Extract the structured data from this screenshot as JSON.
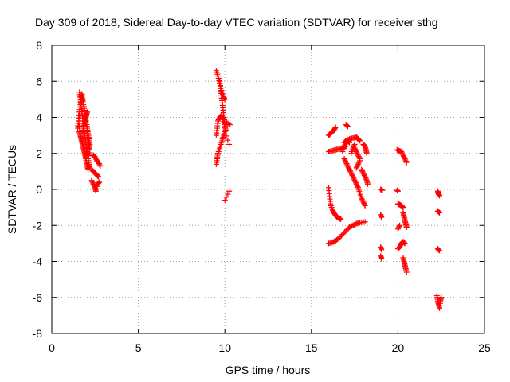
{
  "chart_data": {
    "type": "scatter",
    "title": "Day 309 of 2018, Sidereal Day-to-day VTEC variation (SDTVAR) for receiver sthg",
    "xlabel": "GPS time / hours",
    "ylabel": "SDTVAR / TECUs",
    "xlim": [
      0,
      25
    ],
    "ylim": [
      -8,
      8
    ],
    "xticks": [
      0,
      5,
      10,
      15,
      20,
      25
    ],
    "yticks": [
      -8,
      -6,
      -4,
      -2,
      0,
      2,
      4,
      6,
      8
    ],
    "grid": true,
    "marker": "plus",
    "color": "#ff0000",
    "segments": [
      [
        [
          1.55,
          4.1
        ],
        [
          1.6,
          3.2
        ],
        [
          1.65,
          3.0
        ],
        [
          1.7,
          2.8
        ],
        [
          1.75,
          2.6
        ],
        [
          1.8,
          2.4
        ],
        [
          1.85,
          2.2
        ],
        [
          1.9,
          2.0
        ],
        [
          1.95,
          1.8
        ],
        [
          2.0,
          1.5
        ],
        [
          2.05,
          1.3
        ],
        [
          2.1,
          1.1
        ]
      ],
      [
        [
          1.6,
          5.4
        ],
        [
          1.65,
          5.0
        ],
        [
          1.7,
          4.6
        ],
        [
          1.75,
          4.2
        ],
        [
          1.8,
          3.8
        ],
        [
          1.85,
          3.4
        ],
        [
          1.9,
          3.0
        ],
        [
          1.95,
          2.7
        ],
        [
          2.0,
          2.4
        ],
        [
          2.05,
          2.1
        ],
        [
          2.1,
          1.9
        ]
      ],
      [
        [
          1.7,
          5.3
        ],
        [
          1.75,
          5.1
        ],
        [
          1.8,
          4.9
        ],
        [
          1.85,
          4.6
        ],
        [
          1.9,
          4.3
        ],
        [
          1.95,
          4.0
        ],
        [
          2.0,
          3.7
        ],
        [
          2.05,
          3.4
        ],
        [
          2.1,
          3.1
        ],
        [
          2.15,
          2.8
        ],
        [
          2.2,
          2.5
        ]
      ],
      [
        [
          1.5,
          3.4
        ],
        [
          1.55,
          3.8
        ],
        [
          1.6,
          4.3
        ],
        [
          1.65,
          4.7
        ],
        [
          1.7,
          5.1
        ],
        [
          1.75,
          5.3
        ]
      ],
      [
        [
          1.8,
          3.2
        ],
        [
          1.85,
          3.5
        ],
        [
          1.9,
          3.7
        ],
        [
          1.95,
          3.9
        ],
        [
          2.0,
          4.1
        ],
        [
          2.05,
          4.3
        ]
      ],
      [
        [
          2.05,
          2.9
        ],
        [
          2.1,
          2.6
        ],
        [
          2.15,
          2.4
        ],
        [
          2.2,
          2.2
        ],
        [
          2.1,
          1.7
        ],
        [
          2.15,
          1.4
        ],
        [
          2.2,
          1.2
        ]
      ],
      [
        [
          2.4,
          1.9
        ],
        [
          2.5,
          1.8
        ],
        [
          2.6,
          1.6
        ],
        [
          2.7,
          1.5
        ],
        [
          2.8,
          1.3
        ]
      ],
      [
        [
          2.3,
          1.1
        ],
        [
          2.4,
          1.0
        ],
        [
          2.5,
          0.9
        ],
        [
          2.6,
          0.8
        ],
        [
          2.7,
          0.7
        ]
      ],
      [
        [
          2.3,
          0.5
        ],
        [
          2.4,
          0.3
        ],
        [
          2.5,
          0.1
        ],
        [
          2.55,
          -0.1
        ],
        [
          2.65,
          0.3
        ],
        [
          2.75,
          0.4
        ]
      ],
      [
        [
          9.5,
          6.6
        ],
        [
          9.6,
          6.3
        ],
        [
          9.7,
          5.9
        ],
        [
          9.8,
          5.5
        ],
        [
          9.9,
          5.2
        ],
        [
          10.0,
          5.0
        ]
      ],
      [
        [
          9.7,
          6.0
        ],
        [
          9.75,
          5.6
        ],
        [
          9.8,
          5.2
        ],
        [
          9.85,
          4.8
        ],
        [
          9.9,
          4.4
        ],
        [
          9.95,
          4.0
        ],
        [
          10.0,
          3.6
        ],
        [
          10.1,
          3.7
        ],
        [
          10.3,
          3.6
        ]
      ],
      [
        [
          9.5,
          3.0
        ],
        [
          9.55,
          3.4
        ],
        [
          9.6,
          3.8
        ],
        [
          9.7,
          4.0
        ],
        [
          9.8,
          4.1
        ],
        [
          9.9,
          3.9
        ],
        [
          10.0,
          3.5
        ],
        [
          10.05,
          3.3
        ]
      ],
      [
        [
          9.5,
          1.4
        ],
        [
          9.55,
          1.7
        ],
        [
          9.6,
          2.0
        ],
        [
          9.7,
          2.3
        ],
        [
          9.8,
          2.6
        ],
        [
          9.9,
          2.9
        ],
        [
          10.0,
          3.2
        ],
        [
          10.25,
          2.5
        ]
      ],
      [
        [
          10.0,
          -0.6
        ],
        [
          10.25,
          -0.1
        ]
      ],
      [
        [
          16.0,
          0.1
        ],
        [
          16.05,
          -0.4
        ],
        [
          16.1,
          -0.8
        ],
        [
          16.2,
          -1.1
        ],
        [
          16.3,
          -1.3
        ],
        [
          16.4,
          -1.45
        ],
        [
          16.5,
          -1.55
        ],
        [
          16.6,
          -1.6
        ],
        [
          16.7,
          -1.65
        ]
      ],
      [
        [
          16.0,
          -3.0
        ],
        [
          16.2,
          -2.95
        ],
        [
          16.4,
          -2.85
        ],
        [
          16.6,
          -2.7
        ],
        [
          16.8,
          -2.5
        ],
        [
          17.0,
          -2.3
        ],
        [
          17.2,
          -2.1
        ],
        [
          17.4,
          -2.0
        ],
        [
          17.6,
          -1.9
        ],
        [
          17.8,
          -1.85
        ],
        [
          18.1,
          -1.8
        ]
      ],
      [
        [
          16.0,
          3.0
        ],
        [
          16.1,
          3.1
        ],
        [
          16.2,
          3.2
        ],
        [
          16.3,
          3.3
        ],
        [
          16.4,
          3.45
        ]
      ],
      [
        [
          16.0,
          2.1
        ],
        [
          16.2,
          2.15
        ],
        [
          16.4,
          2.2
        ],
        [
          16.6,
          2.25
        ],
        [
          16.8,
          2.3
        ],
        [
          17.0,
          2.4
        ]
      ],
      [
        [
          16.9,
          2.6
        ],
        [
          17.0,
          2.7
        ],
        [
          17.2,
          2.8
        ],
        [
          17.4,
          2.85
        ],
        [
          17.6,
          2.9
        ],
        [
          17.7,
          2.8
        ],
        [
          17.8,
          2.7
        ]
      ],
      [
        [
          16.8,
          2.1
        ],
        [
          16.9,
          2.4
        ],
        [
          17.0,
          2.6
        ],
        [
          17.1,
          2.7
        ],
        [
          17.2,
          2.6
        ]
      ],
      [
        [
          17.0,
          3.6
        ],
        [
          17.1,
          3.5
        ]
      ],
      [
        [
          16.9,
          1.7
        ],
        [
          17.0,
          1.5
        ],
        [
          17.1,
          1.3
        ],
        [
          17.2,
          1.1
        ],
        [
          17.3,
          0.9
        ],
        [
          17.4,
          0.7
        ],
        [
          17.5,
          0.5
        ],
        [
          17.6,
          0.3
        ],
        [
          17.7,
          0.1
        ],
        [
          17.8,
          -0.2
        ],
        [
          17.9,
          -0.5
        ],
        [
          18.0,
          -0.7
        ],
        [
          18.1,
          -0.9
        ]
      ],
      [
        [
          17.5,
          2.3
        ],
        [
          17.6,
          2.1
        ],
        [
          17.7,
          1.9
        ],
        [
          17.8,
          1.7
        ]
      ],
      [
        [
          17.9,
          1.1
        ],
        [
          18.0,
          0.9
        ],
        [
          18.1,
          0.7
        ],
        [
          18.2,
          0.5
        ],
        [
          18.25,
          0.3
        ]
      ],
      [
        [
          18.0,
          2.5
        ],
        [
          18.1,
          2.4
        ],
        [
          18.15,
          2.2
        ],
        [
          18.2,
          2.0
        ]
      ],
      [
        [
          17.3,
          2.0
        ],
        [
          17.4,
          2.3
        ],
        [
          17.5,
          2.5
        ]
      ],
      [
        [
          17.6,
          1.2
        ],
        [
          17.7,
          1.4
        ],
        [
          17.8,
          1.6
        ]
      ],
      [
        [
          19.0,
          0.0
        ],
        [
          19.1,
          -0.05
        ]
      ],
      [
        [
          19.0,
          -1.4
        ],
        [
          19.05,
          -1.55
        ]
      ],
      [
        [
          19.0,
          -3.2
        ],
        [
          19.05,
          -3.35
        ]
      ],
      [
        [
          19.0,
          -3.7
        ],
        [
          19.05,
          -3.85
        ]
      ],
      [
        [
          19.95,
          2.2
        ],
        [
          20.05,
          2.15
        ],
        [
          20.2,
          2.1
        ],
        [
          20.3,
          1.9
        ],
        [
          20.4,
          1.7
        ],
        [
          20.5,
          1.5
        ]
      ],
      [
        [
          19.95,
          -0.05
        ],
        [
          20.0,
          -0.1
        ]
      ],
      [
        [
          20.0,
          -0.8
        ],
        [
          20.1,
          -0.85
        ],
        [
          20.2,
          -0.9
        ],
        [
          20.3,
          -1.0
        ]
      ],
      [
        [
          20.3,
          -1.3
        ],
        [
          20.35,
          -1.5
        ],
        [
          20.4,
          -1.7
        ],
        [
          20.45,
          -1.9
        ],
        [
          20.5,
          -2.1
        ]
      ],
      [
        [
          20.0,
          -2.2
        ],
        [
          20.1,
          -2.0
        ]
      ],
      [
        [
          20.0,
          -3.3
        ],
        [
          20.1,
          -3.2
        ],
        [
          20.2,
          -3.0
        ],
        [
          20.3,
          -2.9
        ],
        [
          20.4,
          -3.0
        ]
      ],
      [
        [
          20.3,
          -3.8
        ],
        [
          20.35,
          -4.0
        ],
        [
          20.4,
          -4.2
        ],
        [
          20.45,
          -4.4
        ],
        [
          20.5,
          -4.6
        ]
      ],
      [
        [
          22.3,
          -0.1
        ],
        [
          22.35,
          -0.25
        ],
        [
          22.4,
          -0.35
        ]
      ],
      [
        [
          22.3,
          -1.2
        ],
        [
          22.4,
          -1.3
        ]
      ],
      [
        [
          22.3,
          -3.3
        ],
        [
          22.4,
          -3.4
        ]
      ],
      [
        [
          22.25,
          -5.9
        ],
        [
          22.3,
          -6.2
        ],
        [
          22.35,
          -6.4
        ],
        [
          22.4,
          -6.6
        ],
        [
          22.45,
          -6.2
        ],
        [
          22.5,
          -6.0
        ]
      ]
    ]
  }
}
